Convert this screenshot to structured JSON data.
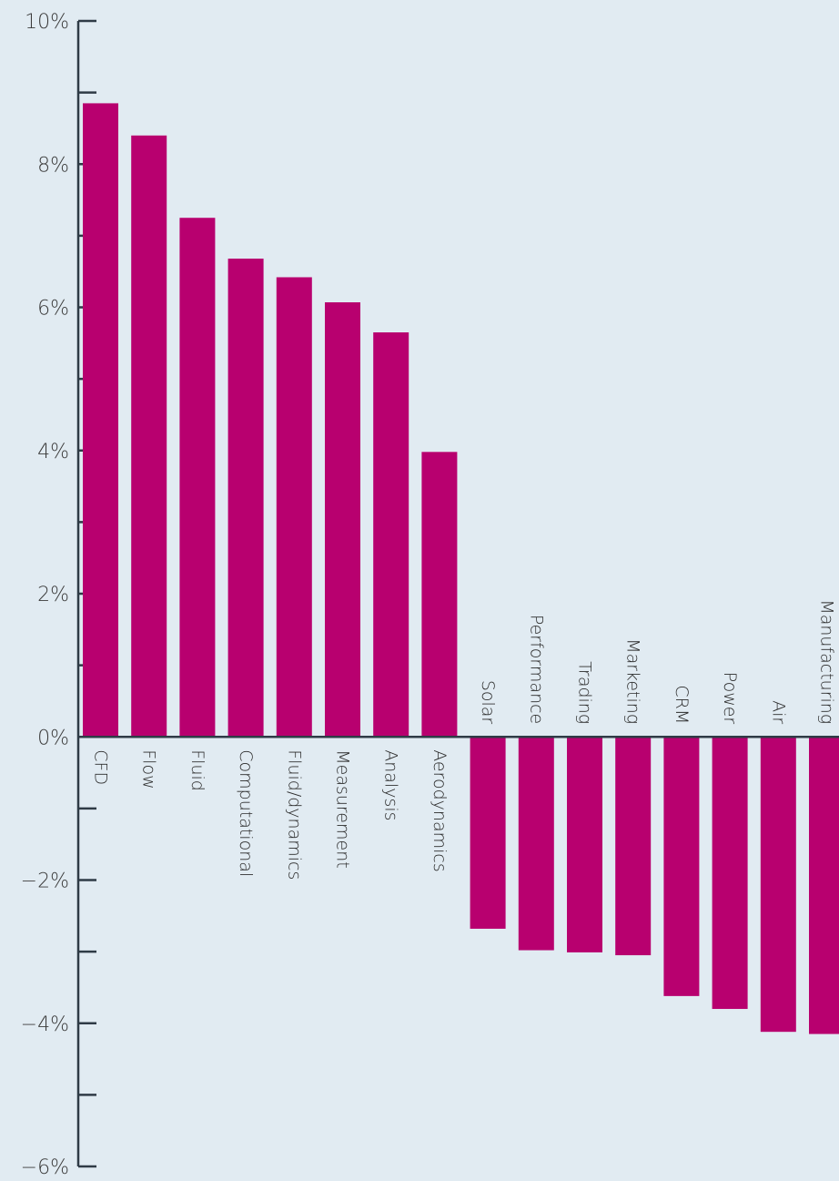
{
  "chart_data": {
    "type": "bar",
    "title": "",
    "xlabel": "",
    "ylabel": "",
    "ylim": [
      -6,
      10
    ],
    "yticks": [
      {
        "value": 10,
        "label": "10%"
      },
      {
        "value": 8,
        "label": "8%"
      },
      {
        "value": 6,
        "label": "6%"
      },
      {
        "value": 4,
        "label": "4%"
      },
      {
        "value": 2,
        "label": "2%"
      },
      {
        "value": 0,
        "label": "0%"
      },
      {
        "value": -2,
        "label": "−2%"
      },
      {
        "value": -4,
        "label": "−4%"
      },
      {
        "value": -6,
        "label": "−6%"
      }
    ],
    "minor_tick_step": 1,
    "bar_color": "#b8006f",
    "axis_color": "#2f3b46",
    "background": "#e1ebf2",
    "grid": false,
    "categories": [
      "CFD",
      "Flow",
      "Fluid",
      "Computational",
      "Fluid/dynamics",
      "Measurement",
      "Analysis",
      "Aerodynamics",
      "Solar",
      "Performance",
      "Trading",
      "Marketing",
      "CRM",
      "Power",
      "Air",
      "Manufacturing"
    ],
    "values": [
      8.85,
      8.4,
      7.25,
      6.68,
      6.42,
      6.07,
      5.65,
      3.98,
      -2.68,
      -2.98,
      -3.01,
      -3.05,
      -3.62,
      -3.8,
      -4.12,
      -4.15
    ]
  }
}
